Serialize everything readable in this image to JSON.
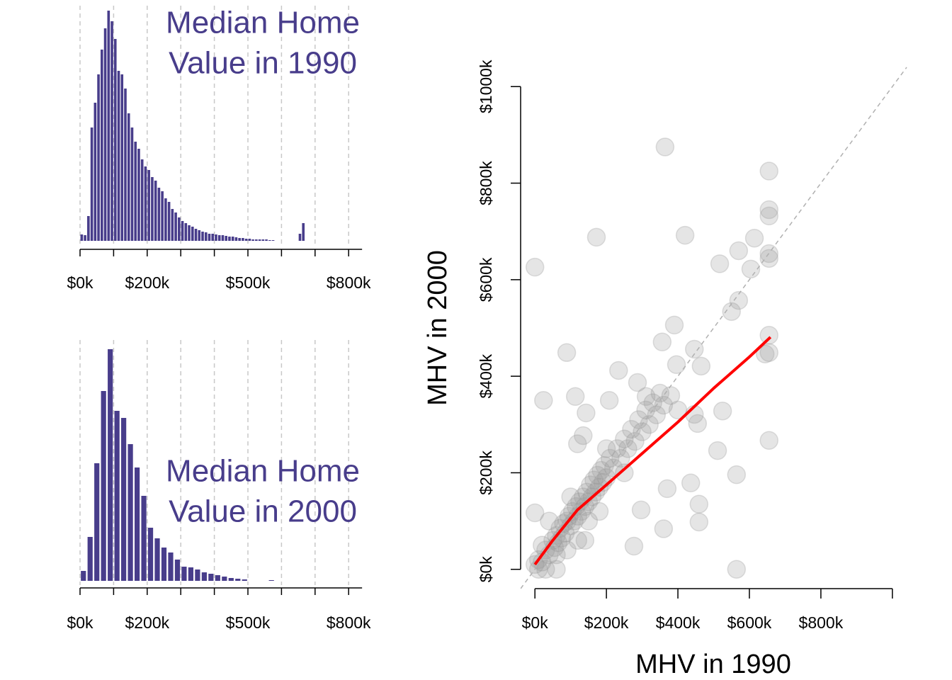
{
  "chart_data": [
    {
      "type": "histogram",
      "title": [
        "Median Home",
        "Value in 1990"
      ],
      "color": "#483d8b",
      "grid": true,
      "bins": [
        0,
        10,
        20,
        30,
        40,
        50,
        60,
        70,
        80,
        90,
        100,
        110,
        120,
        130,
        140,
        150,
        160,
        170,
        180,
        190,
        200,
        210,
        220,
        230,
        240,
        250,
        260,
        270,
        280,
        290,
        300,
        310,
        320,
        330,
        340,
        350,
        360,
        370,
        380,
        390,
        400,
        410,
        420,
        430,
        440,
        450,
        460,
        470,
        480,
        490,
        500,
        510,
        520,
        530,
        540,
        550,
        560,
        570,
        580,
        590,
        600,
        610,
        620,
        630,
        640,
        650,
        660,
        670
      ],
      "values": [
        9,
        8,
        35,
        160,
        195,
        235,
        270,
        300,
        325,
        310,
        285,
        240,
        235,
        215,
        180,
        160,
        140,
        130,
        115,
        105,
        100,
        90,
        85,
        75,
        70,
        60,
        55,
        45,
        40,
        33,
        28,
        25,
        22,
        20,
        17,
        15,
        13,
        12,
        10,
        10,
        9,
        8,
        8,
        7,
        6,
        6,
        5,
        4,
        4,
        3,
        3,
        2,
        2,
        2,
        2,
        2,
        1,
        1,
        0,
        0,
        0,
        0,
        0,
        0,
        0,
        10,
        25
      ],
      "xlim": [
        0,
        840
      ],
      "ylim": [
        0,
        330
      ],
      "xticks": [
        {
          "value": 0,
          "label": "$0k"
        },
        {
          "value": 100,
          "label": null
        },
        {
          "value": 200,
          "label": "$200k"
        },
        {
          "value": 300,
          "label": null
        },
        {
          "value": 400,
          "label": null
        },
        {
          "value": 500,
          "label": "$500k"
        },
        {
          "value": 600,
          "label": null
        },
        {
          "value": 700,
          "label": null
        },
        {
          "value": 800,
          "label": "$800k"
        }
      ]
    },
    {
      "type": "histogram",
      "title": [
        "Median Home",
        "Value in 2000"
      ],
      "color": "#483d8b",
      "grid": true,
      "bins": [
        0,
        20,
        40,
        60,
        80,
        100,
        120,
        140,
        160,
        180,
        200,
        220,
        240,
        260,
        280,
        300,
        320,
        340,
        360,
        380,
        400,
        420,
        440,
        460,
        480,
        500,
        520,
        540,
        560,
        580
      ],
      "values": [
        14,
        62,
        166,
        268,
        327,
        240,
        230,
        193,
        160,
        120,
        75,
        60,
        47,
        40,
        30,
        20,
        19,
        16,
        12,
        10,
        8,
        6,
        4,
        3,
        2,
        0,
        0,
        0,
        1
      ],
      "xlim": [
        0,
        840
      ],
      "ylim": [
        0,
        330
      ],
      "xticks": [
        {
          "value": 0,
          "label": "$0k"
        },
        {
          "value": 100,
          "label": null
        },
        {
          "value": 200,
          "label": "$200k"
        },
        {
          "value": 300,
          "label": null
        },
        {
          "value": 400,
          "label": null
        },
        {
          "value": 500,
          "label": "$500k"
        },
        {
          "value": 600,
          "label": null
        },
        {
          "value": 700,
          "label": null
        },
        {
          "value": 800,
          "label": "$800k"
        }
      ]
    },
    {
      "type": "scatter",
      "xlabel": "MHV in 1990",
      "ylabel": "MHV in 2000",
      "color": "#999999",
      "x": [
        0,
        172,
        364,
        420,
        655,
        655,
        655,
        614,
        570,
        604,
        517,
        655,
        655,
        550,
        570,
        390,
        356,
        446,
        655,
        644,
        655,
        89,
        24,
        0,
        655,
        564,
        511,
        525,
        459,
        459,
        360,
        564,
        277,
        370,
        436,
        297,
        234,
        396,
        465,
        455,
        446,
        287,
        113,
        143,
        135,
        119,
        208,
        350,
        311,
        10,
        20,
        30,
        40,
        50,
        55,
        60,
        65,
        70,
        75,
        80,
        85,
        90,
        95,
        100,
        105,
        110,
        115,
        120,
        125,
        130,
        135,
        140,
        145,
        150,
        155,
        160,
        165,
        170,
        175,
        180,
        185,
        190,
        195,
        200,
        210,
        220,
        230,
        240,
        250,
        260,
        270,
        280,
        290,
        300,
        310,
        320,
        330,
        340,
        360,
        380,
        400,
        20,
        60,
        100,
        150,
        200,
        250,
        40,
        30,
        60,
        120,
        90,
        0,
        10,
        140,
        180
      ],
      "y": [
        626,
        688,
        875,
        692,
        825,
        745,
        732,
        686,
        660,
        622,
        633,
        654,
        644,
        534,
        557,
        506,
        471,
        456,
        485,
        446,
        449,
        449,
        350,
        117,
        267,
        196,
        246,
        328,
        135,
        98,
        84,
        0,
        48,
        167,
        179,
        123,
        412,
        424,
        421,
        302,
        321,
        387,
        358,
        324,
        277,
        260,
        350,
        365,
        358,
        20,
        15,
        40,
        30,
        60,
        45,
        70,
        55,
        85,
        65,
        95,
        75,
        100,
        110,
        90,
        120,
        100,
        130,
        110,
        140,
        120,
        150,
        130,
        160,
        140,
        175,
        150,
        185,
        160,
        195,
        170,
        205,
        180,
        215,
        190,
        230,
        210,
        250,
        230,
        270,
        250,
        290,
        265,
        310,
        285,
        330,
        300,
        345,
        320,
        340,
        360,
        330,
        50,
        30,
        150,
        100,
        250,
        200,
        100,
        0,
        0,
        60,
        40,
        10,
        0,
        60,
        120
      ],
      "fit": {
        "color": "#ff0000",
        "x": [
          0,
          50,
          119,
          200,
          300,
          400,
          500,
          600,
          659
        ],
        "y": [
          10,
          60,
          123,
          175,
          240,
          305,
          375,
          440,
          481
        ]
      },
      "abline": {
        "intercept": 0,
        "slope": 1
      },
      "xlim": [
        -40,
        1040
      ],
      "ylim": [
        -40,
        1040
      ],
      "xticks": [
        {
          "value": 0,
          "label": "$0k"
        },
        {
          "value": 200,
          "label": "$200k"
        },
        {
          "value": 400,
          "label": "$400k"
        },
        {
          "value": 600,
          "label": "$600k"
        },
        {
          "value": 800,
          "label": "$800k"
        },
        {
          "value": 1000,
          "label": null
        }
      ],
      "yticks": [
        {
          "value": 0,
          "label": "$0k"
        },
        {
          "value": 200,
          "label": "$200k"
        },
        {
          "value": 400,
          "label": "$400k"
        },
        {
          "value": 600,
          "label": "$600k"
        },
        {
          "value": 800,
          "label": "$800k"
        },
        {
          "value": 1000,
          "label": "$1000k"
        }
      ]
    }
  ]
}
